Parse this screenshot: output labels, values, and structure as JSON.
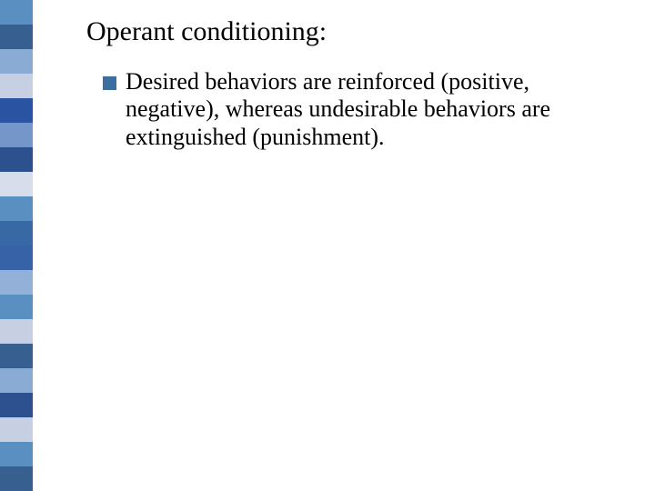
{
  "slide": {
    "title": "Operant conditioning:",
    "bullets": [
      {
        "text": "Desired behaviors are reinforced (positive, negative), whereas undesirable behaviors are extinguished (punishment).",
        "marker_color": "#3a6fa0"
      }
    ],
    "title_fontsize": 30,
    "body_fontsize": 26,
    "title_color": "#000000",
    "body_color": "#000000",
    "background_color": "#ffffff",
    "sidebar": {
      "stripe_count": 20,
      "stripe_height": 27,
      "colors": [
        "#5a8fc2",
        "#375f8f",
        "#8aacd4",
        "#c7cfe3",
        "#2a54a2",
        "#7596c9",
        "#2d518f",
        "#d7ddeb",
        "#5a8fc2",
        "#3869a5",
        "#3862a8",
        "#93b0d8",
        "#5a8fc2",
        "#c7cfe3",
        "#375f8f",
        "#8aacd4",
        "#2d518f",
        "#c7cfe3",
        "#5a8fc2",
        "#375f8f"
      ]
    }
  }
}
